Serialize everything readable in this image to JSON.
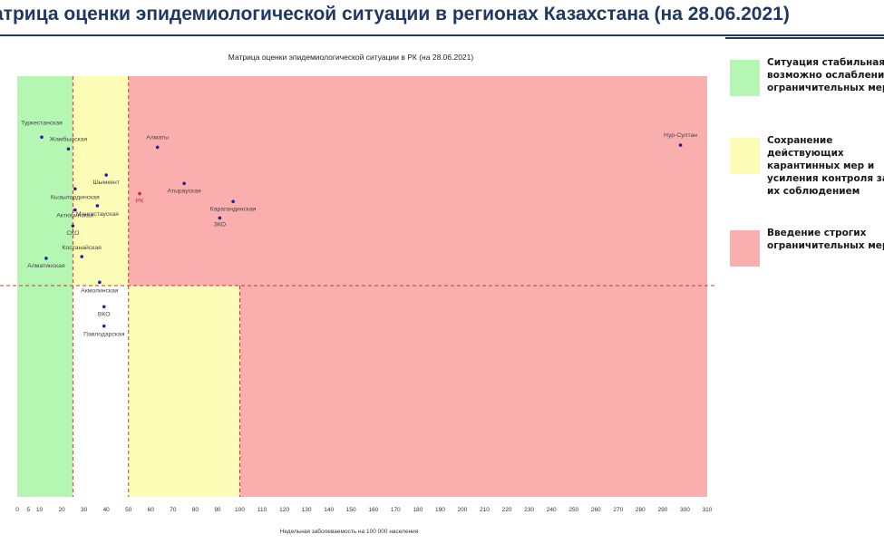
{
  "page": {
    "title": "атрица оценки эпидемиологической ситуации в регионах Казахстана (на 28.06.2021)"
  },
  "legend": [
    {
      "color": "#b3f7b3",
      "text": "Ситуация стабильная, возможно ослабление ограничительных мер"
    },
    {
      "color": "#fdfdb8",
      "text": "Сохранение действующих карантинных мер и усиления контроля за их соблюдением"
    },
    {
      "color": "#fbaeae",
      "text": "Введение строгих ограничительных мер"
    }
  ],
  "chart_data": {
    "type": "scatter",
    "title": "Матрица оценки эпидемиологической ситуации в РК (на 28.06.2021)",
    "xlabel": "Недельная заболеваемость на 100 000 населения",
    "ylabel": "",
    "x_ticks": [
      "0",
      "5",
      "10",
      "20",
      "30",
      "40",
      "50",
      "60",
      "70",
      "80",
      "90",
      "100",
      "110",
      "120",
      "130",
      "140",
      "150",
      "160",
      "170",
      "180",
      "190",
      "200",
      "210",
      "220",
      "230",
      "240",
      "250",
      "260",
      "270",
      "280",
      "290",
      "300",
      "310"
    ],
    "x_tick_values": [
      0,
      5,
      10,
      20,
      30,
      40,
      50,
      60,
      70,
      80,
      90,
      100,
      110,
      120,
      130,
      140,
      150,
      160,
      170,
      180,
      190,
      200,
      210,
      220,
      230,
      240,
      250,
      260,
      270,
      280,
      290,
      300,
      310
    ],
    "xlim": [
      0,
      310
    ],
    "grid": false,
    "zones": [
      {
        "color": "#b3f7b3",
        "x_from": 0,
        "x_to": 25,
        "part": "all"
      },
      {
        "color": "#fdfdb8",
        "x_from": 25,
        "x_to": 50,
        "part": "upper"
      },
      {
        "color": "#fbaeae",
        "x_from": 50,
        "x_to": 310,
        "part": "upper"
      },
      {
        "color": "#fdfdb8",
        "x_from": 50,
        "x_to": 100,
        "part": "lower"
      },
      {
        "color": "#fbaeae",
        "x_from": 100,
        "x_to": 310,
        "part": "lower"
      }
    ],
    "threshold_lines": {
      "x": [
        25,
        50,
        100
      ],
      "color": "#c0392b"
    },
    "point_color": "#1f1fa8",
    "highlight_color": "#d62728",
    "points": [
      {
        "label": "Туркестанская",
        "x": 11,
        "y": 0.145,
        "highlight": false
      },
      {
        "label": "Жамбылская",
        "x": 23,
        "y": 0.173,
        "highlight": false
      },
      {
        "label": "Алматы",
        "x": 63,
        "y": 0.169,
        "highlight": false
      },
      {
        "label": "Нур-Султан",
        "x": 298,
        "y": 0.164,
        "highlight": false
      },
      {
        "label": "Шымкент",
        "x": 40,
        "y": 0.235,
        "highlight": false
      },
      {
        "label": "Атырауская",
        "x": 75,
        "y": 0.255,
        "highlight": false
      },
      {
        "label": "Кызылординская",
        "x": 26,
        "y": 0.268,
        "highlight": false
      },
      {
        "label": "РК",
        "x": 55,
        "y": 0.279,
        "highlight": true
      },
      {
        "label": "Мангистауская",
        "x": 36,
        "y": 0.308,
        "highlight": false
      },
      {
        "label": "Карагандинская",
        "x": 97,
        "y": 0.298,
        "highlight": false
      },
      {
        "label": "Актюбинская",
        "x": 26,
        "y": 0.318,
        "highlight": false
      },
      {
        "label": "ЗКО",
        "x": 91,
        "y": 0.337,
        "highlight": false
      },
      {
        "label": "СКО",
        "x": 25,
        "y": 0.356,
        "highlight": false
      },
      {
        "label": "Костанайская",
        "x": 29,
        "y": 0.429,
        "highlight": false
      },
      {
        "label": "Алматинская",
        "x": 13,
        "y": 0.433,
        "highlight": false
      },
      {
        "label": "Акмолинская",
        "x": 37,
        "y": 0.49,
        "highlight": false
      },
      {
        "label": "ВКО",
        "x": 39,
        "y": 0.548,
        "highlight": false
      },
      {
        "label": "Павлодарская",
        "x": 39,
        "y": 0.594,
        "highlight": false
      }
    ]
  }
}
